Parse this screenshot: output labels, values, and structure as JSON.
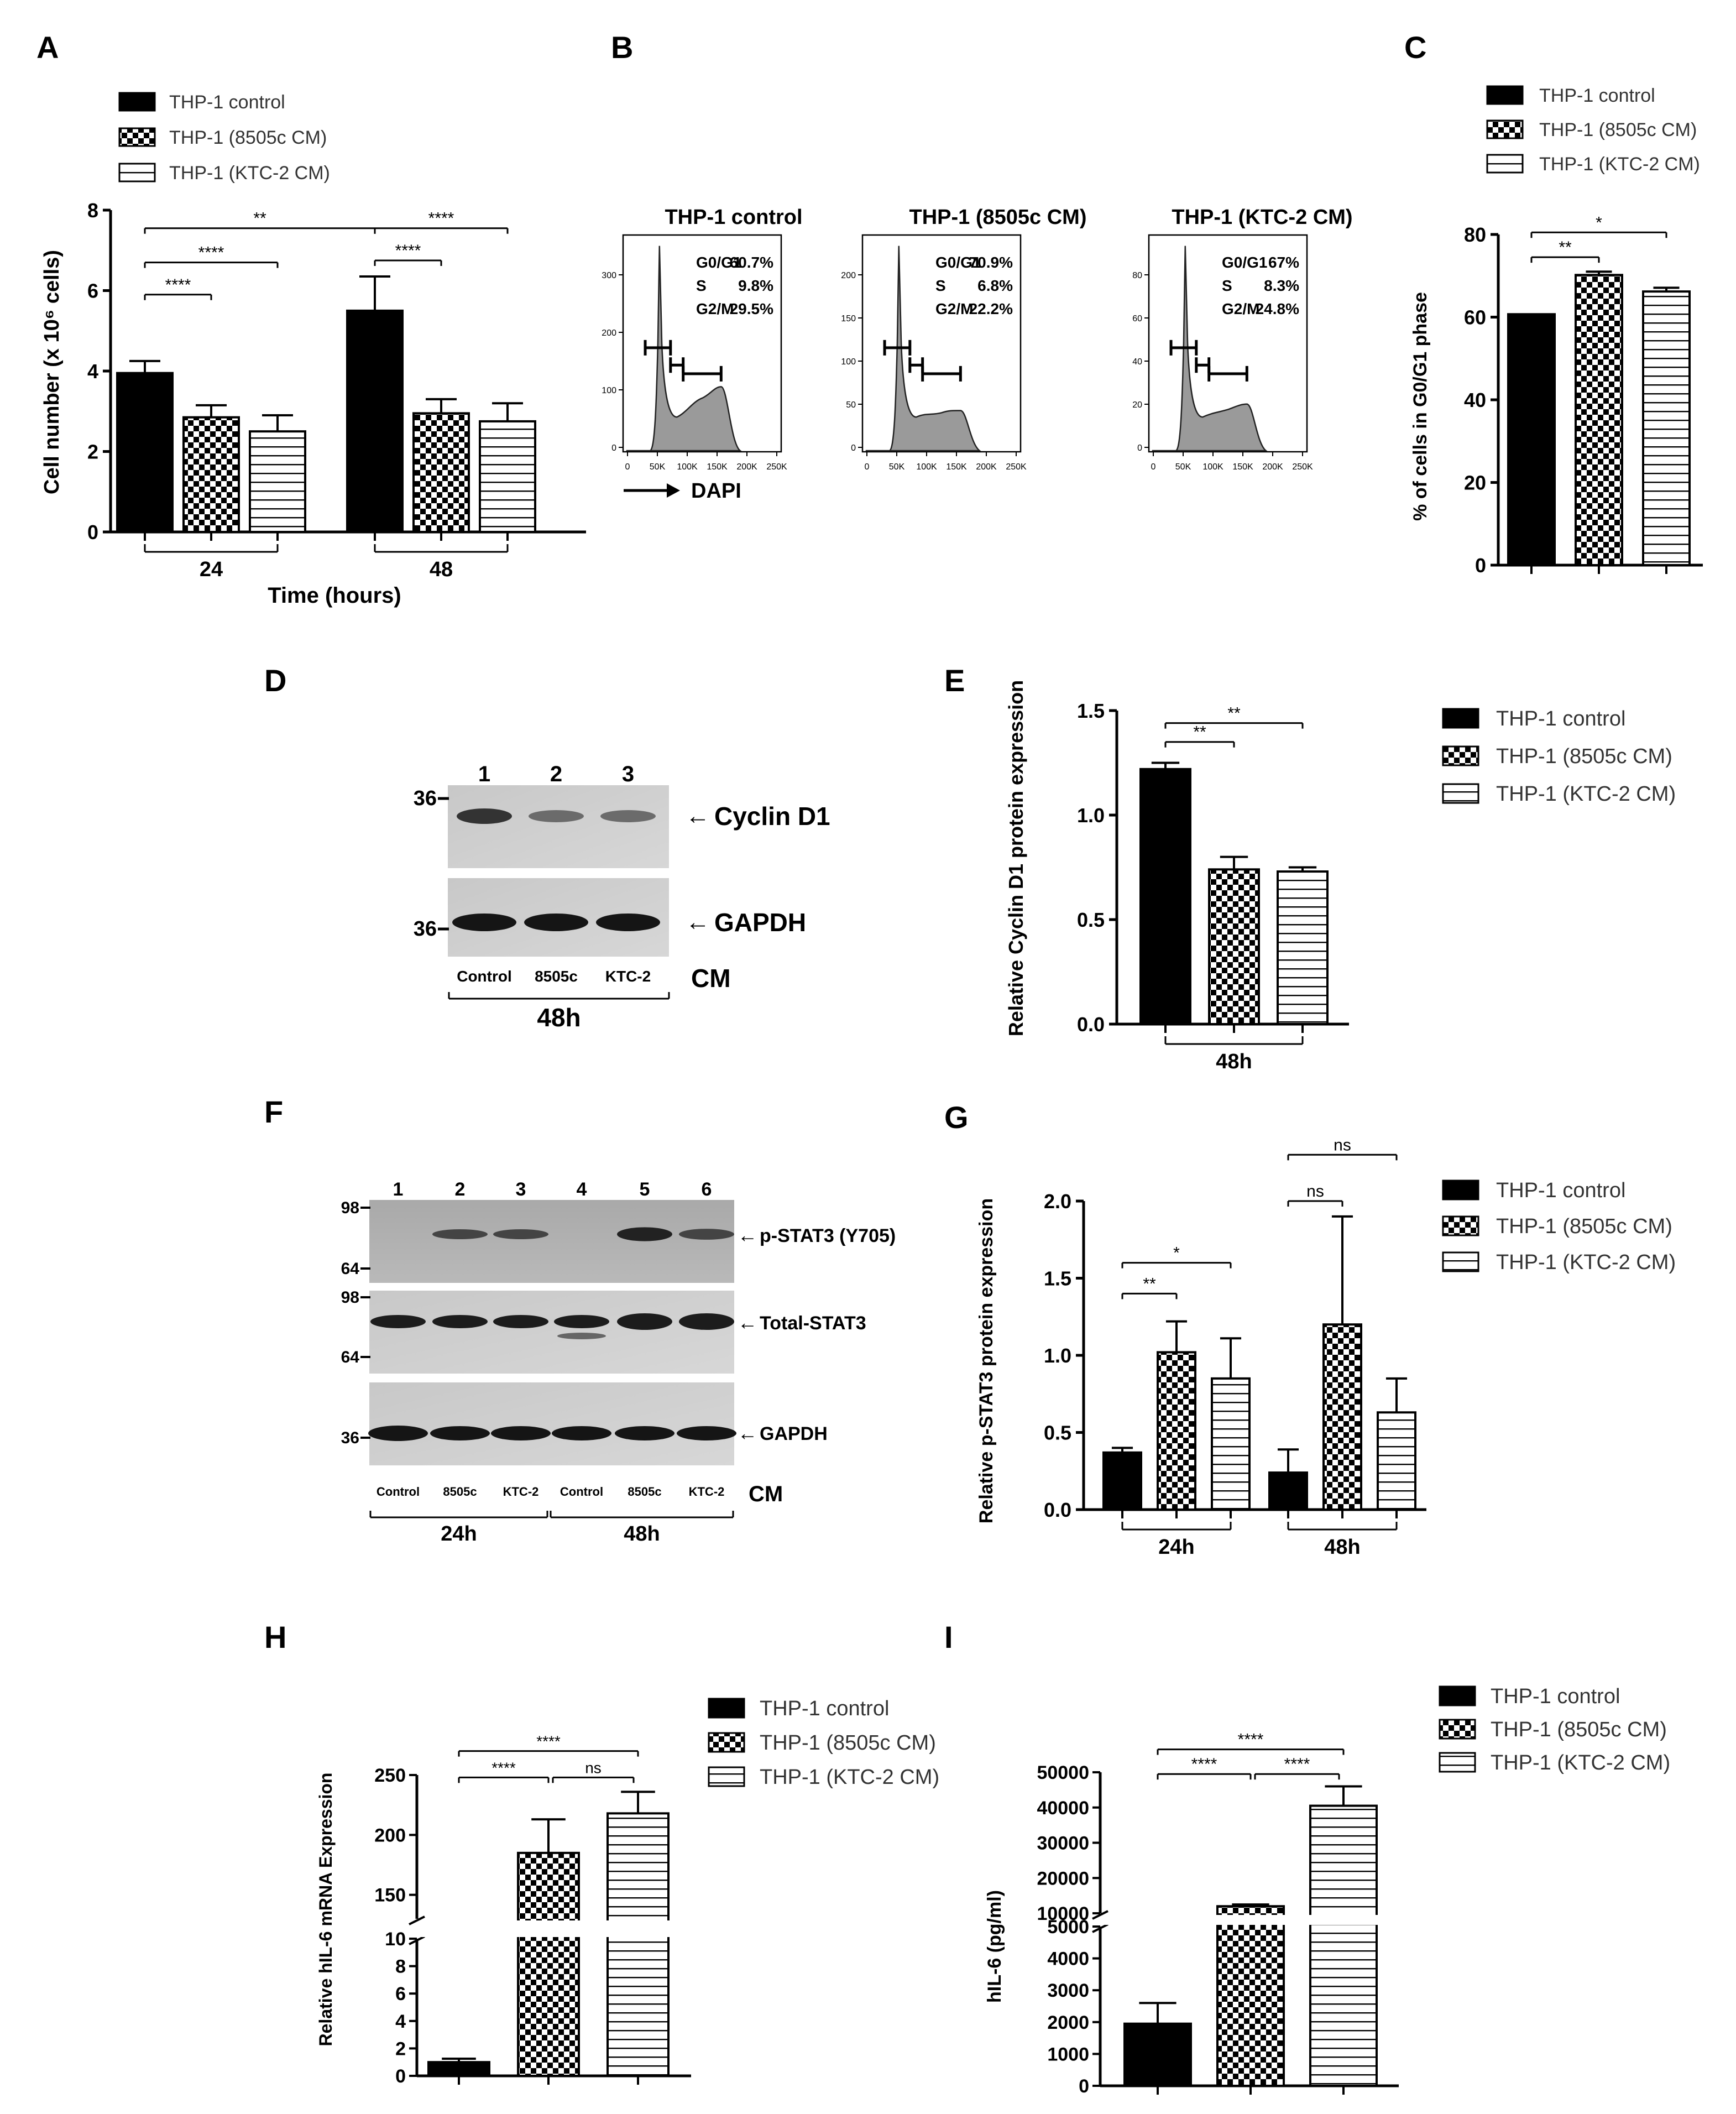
{
  "legend": {
    "control": "THP-1 control",
    "c8505": "THP-1  (8505c CM)",
    "ktc2": "THP-1  (KTC-2 CM)"
  },
  "panels": {
    "A": "A",
    "B": "B",
    "C": "C",
    "D": "D",
    "E": "E",
    "F": "F",
    "G": "G",
    "H": "H",
    "I": "I"
  },
  "flow": {
    "x_ticks": [
      "0",
      "50K",
      "100K",
      "150K",
      "200K",
      "250K"
    ],
    "arrow_label": "DAPI",
    "histograms": [
      {
        "title": "THP-1 control",
        "y_ticks": [
          "0",
          "100",
          "200",
          "300"
        ],
        "g0g1_label": "G0/G1",
        "g0g1": "60.7%",
        "s_label": "S",
        "s": "9.8%",
        "g2m_label": "G2/M",
        "g2m": "29.5%"
      },
      {
        "title": "THP-1  (8505c CM)",
        "y_ticks": [
          "0",
          "50",
          "100",
          "150",
          "200"
        ],
        "g0g1_label": "G0/G1",
        "g0g1": "70.9%",
        "s_label": "S",
        "s": "6.8%",
        "g2m_label": "G2/M",
        "g2m": "22.2%"
      },
      {
        "title": "THP-1  (KTC-2 CM)",
        "y_ticks": [
          "0",
          "20",
          "40",
          "60",
          "80"
        ],
        "g0g1_label": "G0/G1",
        "g0g1": "67%",
        "s_label": "S",
        "s": "8.3%",
        "g2m_label": "G2/M",
        "g2m": "24.8%"
      }
    ]
  },
  "blotD": {
    "lanes": [
      "1",
      "2",
      "3"
    ],
    "marker": "36",
    "bands": [
      "Cyclin D1",
      "GAPDH"
    ],
    "conditions": [
      "Control",
      "8505c",
      "KTC-2"
    ],
    "cm_label": "CM",
    "time": "48h"
  },
  "blotF": {
    "lanes": [
      "1",
      "2",
      "3",
      "4",
      "5",
      "6"
    ],
    "markers": [
      "98",
      "64",
      "98",
      "64",
      "36"
    ],
    "bands": [
      "p-STAT3 (Y705)",
      "Total-STAT3",
      "GAPDH"
    ],
    "conditions": [
      "Control",
      "8505c",
      "KTC-2",
      "Control",
      "8505c",
      "KTC-2"
    ],
    "cm_label": "CM",
    "times": [
      "24h",
      "48h"
    ]
  },
  "chart_data": [
    {
      "id": "A",
      "type": "bar",
      "ylabel": "Cell number (x 10⁶ cells)",
      "xlabel": "Time (hours)",
      "ylim": [
        0,
        8
      ],
      "yticks": [
        "0",
        "2",
        "4",
        "6",
        "8"
      ],
      "groups": [
        "24",
        "48"
      ],
      "series": [
        {
          "name": "THP-1 control",
          "values": [
            3.95,
            5.5
          ],
          "errors": [
            0.3,
            0.85
          ]
        },
        {
          "name": "THP-1 (8505c CM)",
          "values": [
            2.85,
            2.95
          ],
          "errors": [
            0.3,
            0.35
          ]
        },
        {
          "name": "THP-1 (KTC-2 CM)",
          "values": [
            2.5,
            2.75
          ],
          "errors": [
            0.4,
            0.45
          ]
        }
      ],
      "significance": [
        {
          "label": "****",
          "group": 0,
          "from": 0,
          "to": 1,
          "y": 5.9
        },
        {
          "label": "****",
          "group": 0,
          "from": 0,
          "to": 2,
          "y": 6.7
        },
        {
          "label": "**",
          "group": -1,
          "from": 0,
          "to": 3,
          "y": 7.55
        },
        {
          "label": "****",
          "group": 1,
          "from": 0,
          "to": 1,
          "y": 6.75
        },
        {
          "label": "****",
          "group": 1,
          "from": 0,
          "to": 2,
          "y": 7.55
        }
      ]
    },
    {
      "id": "C",
      "type": "bar",
      "ylabel": "% of cells in G0/G1 phase",
      "xlabel": "",
      "ylim": [
        0,
        80
      ],
      "yticks": [
        "0",
        "20",
        "40",
        "60",
        "80"
      ],
      "groups": [
        ""
      ],
      "series": [
        {
          "name": "THP-1 control",
          "values": [
            60.7
          ],
          "errors": [
            0
          ]
        },
        {
          "name": "THP-1 (8505c CM)",
          "values": [
            70.2
          ],
          "errors": [
            0.8
          ]
        },
        {
          "name": "THP-1 (KTC-2 CM)",
          "values": [
            66.2
          ],
          "errors": [
            0.9
          ]
        }
      ],
      "significance": [
        {
          "label": "**",
          "group": 0,
          "from": 0,
          "to": 1,
          "y": 74.5
        },
        {
          "label": "*",
          "group": 0,
          "from": 0,
          "to": 2,
          "y": 80.5
        }
      ]
    },
    {
      "id": "E",
      "type": "bar",
      "ylabel": "Relative Cyclin D1 protein expression",
      "xlabel": "",
      "ylim": [
        0,
        1.5
      ],
      "yticks": [
        "0.0",
        "0.5",
        "1.0",
        "1.5"
      ],
      "groups": [
        "48h"
      ],
      "series": [
        {
          "name": "THP-1 control",
          "values": [
            1.22
          ],
          "errors": [
            0.03
          ]
        },
        {
          "name": "THP-1 (8505c CM)",
          "values": [
            0.74
          ],
          "errors": [
            0.06
          ]
        },
        {
          "name": "THP-1 (KTC-2 CM)",
          "values": [
            0.73
          ],
          "errors": [
            0.02
          ]
        }
      ],
      "significance": [
        {
          "label": "**",
          "group": 0,
          "from": 0,
          "to": 1,
          "y": 1.35
        },
        {
          "label": "**",
          "group": 0,
          "from": 0,
          "to": 2,
          "y": 1.44
        }
      ]
    },
    {
      "id": "G",
      "type": "bar",
      "ylabel": "Relative p-STAT3 protein expression",
      "xlabel": "",
      "ylim": [
        0,
        2.0
      ],
      "yticks": [
        "0.0",
        "0.5",
        "1.0",
        "1.5",
        "2.0"
      ],
      "groups": [
        "24h",
        "48h"
      ],
      "series": [
        {
          "name": "THP-1 control",
          "values": [
            0.37,
            0.24
          ],
          "errors": [
            0.03,
            0.15
          ]
        },
        {
          "name": "THP-1 (8505c CM)",
          "values": [
            1.02,
            1.2
          ],
          "errors": [
            0.2,
            0.7
          ]
        },
        {
          "name": "THP-1 (KTC-2 CM)",
          "values": [
            0.85,
            0.63
          ],
          "errors": [
            0.26,
            0.22
          ]
        }
      ],
      "significance": [
        {
          "label": "**",
          "group": 0,
          "from": 0,
          "to": 1,
          "y": 1.4
        },
        {
          "label": "*",
          "group": 0,
          "from": 0,
          "to": 2,
          "y": 1.6
        },
        {
          "label": "ns",
          "group": 1,
          "from": 0,
          "to": 1,
          "y": 2.0
        },
        {
          "label": "ns",
          "group": 1,
          "from": 0,
          "to": 2,
          "y": 2.3
        }
      ]
    },
    {
      "id": "H",
      "type": "bar",
      "ylabel": "Relative hIL-6 mRNA Expression",
      "xlabel": "",
      "axis_break": {
        "low": [
          0,
          10
        ],
        "high": [
          130,
          250
        ]
      },
      "yticks_low": [
        "0",
        "2",
        "4",
        "6",
        "8",
        "10"
      ],
      "yticks_high": [
        "150",
        "200",
        "250"
      ],
      "groups": [
        ""
      ],
      "series": [
        {
          "name": "THP-1 control",
          "values": [
            1.0
          ],
          "errors": [
            0.25
          ]
        },
        {
          "name": "THP-1 (8505c CM)",
          "values": [
            185
          ],
          "errors": [
            28
          ]
        },
        {
          "name": "THP-1 (KTC-2 CM)",
          "values": [
            218
          ],
          "errors": [
            18
          ]
        }
      ],
      "significance": [
        {
          "label": "****",
          "from": 0,
          "to": 1,
          "y": 248
        },
        {
          "label": "ns",
          "from": 1,
          "to": 2,
          "y": 248
        },
        {
          "label": "****",
          "from": 0,
          "to": 2,
          "y": 270
        }
      ]
    },
    {
      "id": "I",
      "type": "bar",
      "ylabel": "hIL-6 (pg/ml)",
      "xlabel": "",
      "axis_break": {
        "low": [
          0,
          5000
        ],
        "high": [
          10000,
          50000
        ]
      },
      "yticks_low": [
        "0",
        "1000",
        "2000",
        "3000",
        "4000",
        "5000"
      ],
      "yticks_high": [
        "10000",
        "20000",
        "30000",
        "40000",
        "50000"
      ],
      "groups": [
        ""
      ],
      "series": [
        {
          "name": "THP-1 control",
          "values": [
            1950
          ],
          "errors": [
            650
          ]
        },
        {
          "name": "THP-1 (8505c CM)",
          "values": [
            12000
          ],
          "errors": [
            500
          ]
        },
        {
          "name": "THP-1 (KTC-2 CM)",
          "values": [
            40500
          ],
          "errors": [
            5500
          ]
        }
      ],
      "significance": [
        {
          "label": "****",
          "from": 0,
          "to": 1,
          "y": 49500
        },
        {
          "label": "****",
          "from": 1,
          "to": 2,
          "y": 49500
        },
        {
          "label": "****",
          "from": 0,
          "to": 2,
          "y": 56500
        }
      ]
    }
  ]
}
